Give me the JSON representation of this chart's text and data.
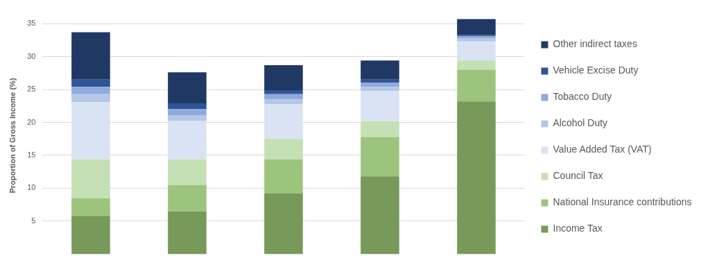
{
  "chart_data": {
    "type": "bar",
    "ylabel": "Proportion of Gross Income (%)",
    "categories": [
      null,
      null,
      null,
      null,
      null
    ],
    "stacked": true,
    "series": [
      {
        "name": "Income Tax",
        "color": "#77995a",
        "values": [
          5.8,
          6.5,
          9.2,
          11.8,
          23.2
        ]
      },
      {
        "name": "National Insurance contributions",
        "color": "#9dc47c",
        "values": [
          2.7,
          4.0,
          5.2,
          6.0,
          4.8
        ]
      },
      {
        "name": "Council Tax",
        "color": "#c5e0b4",
        "values": [
          5.9,
          3.9,
          3.1,
          2.4,
          1.4
        ]
      },
      {
        "name": "Value Added Tax (VAT)",
        "color": "#dae3f3",
        "values": [
          8.7,
          5.8,
          5.3,
          4.6,
          2.9
        ]
      },
      {
        "name": "Alcohol Duty",
        "color": "#b4c7e7",
        "values": [
          1.2,
          0.9,
          0.7,
          0.6,
          0.5
        ]
      },
      {
        "name": "Tobacco Duty",
        "color": "#8faadc",
        "values": [
          1.1,
          0.9,
          0.8,
          0.6,
          0.3
        ]
      },
      {
        "name": "Vehicle Excise Duty",
        "color": "#2f5597",
        "values": [
          1.1,
          0.9,
          0.6,
          0.5,
          0.2
        ]
      },
      {
        "name": "Other indirect taxes",
        "color": "#203864",
        "values": [
          7.2,
          4.7,
          3.8,
          2.9,
          2.4
        ]
      }
    ],
    "ylim": [
      0,
      36
    ],
    "yticks": [
      5,
      10,
      15,
      20,
      25,
      30,
      35
    ],
    "grid": "y",
    "legend": "right",
    "tick_labels": "y"
  }
}
